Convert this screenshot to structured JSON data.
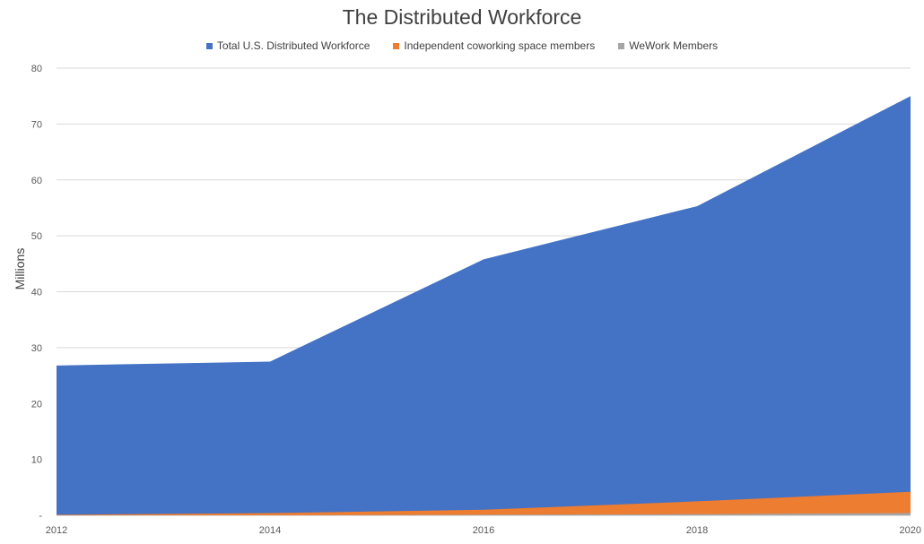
{
  "chart_data": {
    "type": "area",
    "title": "The Distributed Workforce",
    "ylabel": "Millions",
    "xlabel": "",
    "x": [
      2012,
      2014,
      2016,
      2018,
      2020
    ],
    "x_tick_labels": [
      "2012",
      "2014",
      "2016",
      "2018",
      "2020"
    ],
    "y_tick_labels": [
      "-",
      "10",
      "20",
      "30",
      "40",
      "50",
      "60",
      "70",
      "80"
    ],
    "ylim": [
      0,
      80
    ],
    "grid": true,
    "legend_position": "top",
    "series": [
      {
        "name": "Total U.S. Distributed Workforce",
        "color": "#4472C4",
        "values": [
          26.8,
          27.5,
          45.8,
          55.3,
          75.0
        ]
      },
      {
        "name": "Independent coworking space members",
        "color": "#ED7D31",
        "values": [
          0.1,
          0.4,
          1.0,
          2.5,
          4.2
        ]
      },
      {
        "name": "WeWork Members",
        "color": "#A5A5A5",
        "values": [
          0.0,
          0.0,
          0.1,
          0.2,
          0.4
        ]
      }
    ]
  }
}
